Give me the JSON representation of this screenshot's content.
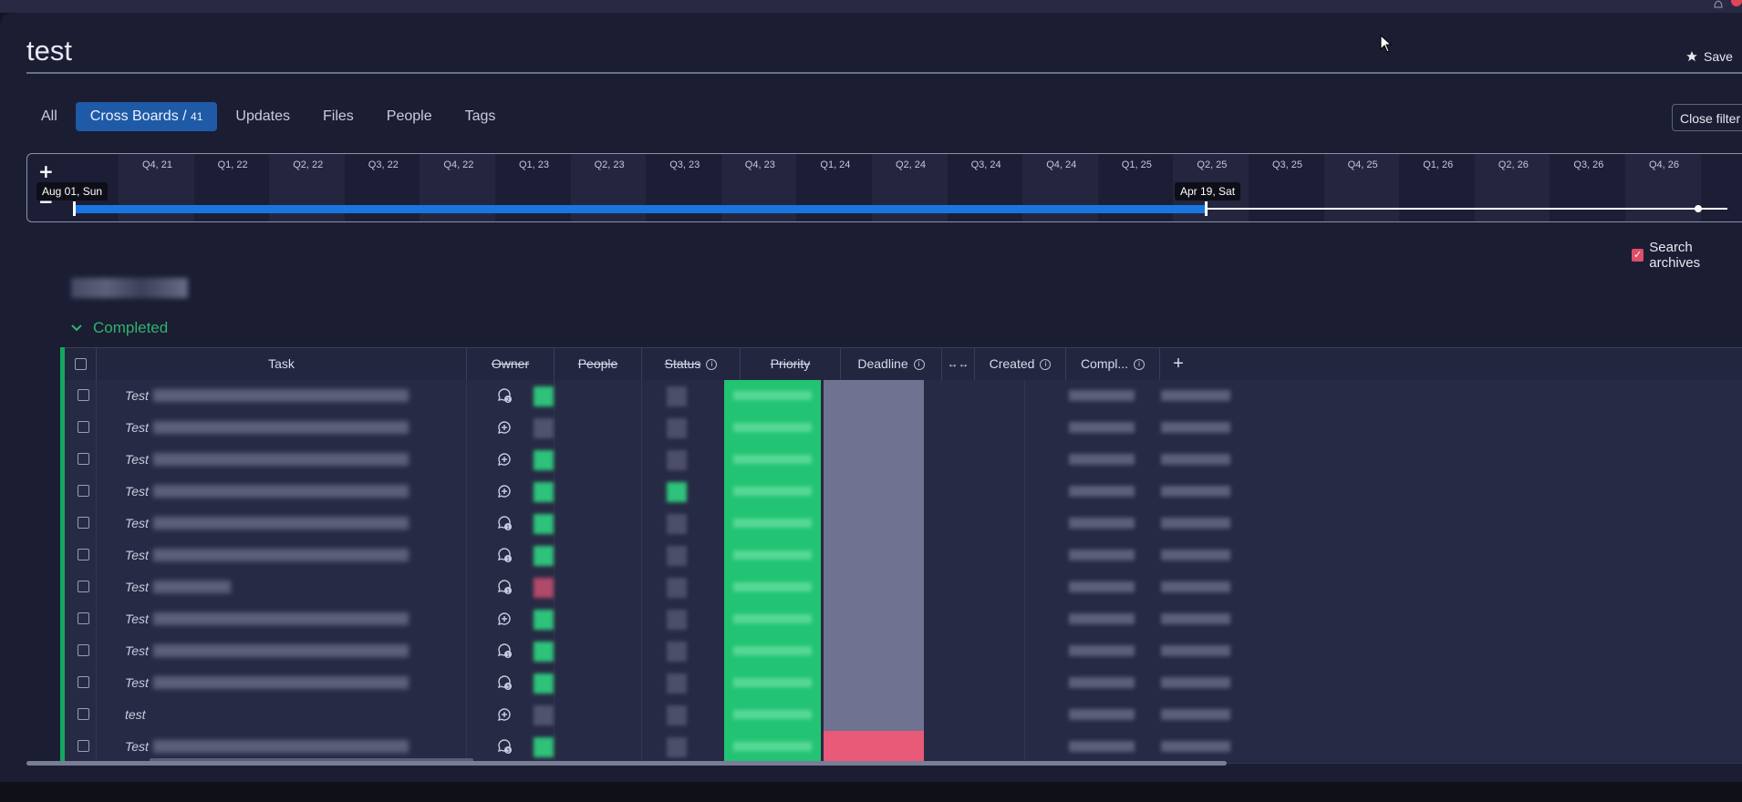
{
  "title": "test",
  "save_label": "Save",
  "tabs": [
    {
      "label": "All"
    },
    {
      "label": "Cross Boards / ",
      "count": "41",
      "active": true
    },
    {
      "label": "Updates"
    },
    {
      "label": "Files"
    },
    {
      "label": "People"
    },
    {
      "label": "Tags"
    }
  ],
  "close_filter_label": "Close filter",
  "timeline": {
    "quarters": [
      "Q4, 21",
      "Q1, 22",
      "Q2, 22",
      "Q3, 22",
      "Q4, 22",
      "Q1, 23",
      "Q2, 23",
      "Q3, 23",
      "Q4, 23",
      "Q1, 24",
      "Q2, 24",
      "Q3, 24",
      "Q4, 24",
      "Q1, 25",
      "Q2, 25",
      "Q3, 25",
      "Q4, 25",
      "Q1, 26",
      "Q2, 26",
      "Q3, 26",
      "Q4, 26"
    ],
    "start_label": "Aug 01, Sun",
    "end_label": "Apr 19, Sat",
    "zoom_in": "+",
    "zoom_out": "−"
  },
  "search_archives_label": "Search archives",
  "group": {
    "name": "Completed",
    "color": "#13a85e"
  },
  "columns": [
    "Task",
    "Owner",
    "People",
    "Status",
    "Priority",
    "Deadline",
    "Created",
    "Compl..."
  ],
  "rows": [
    {
      "task": "Test",
      "update": "badge",
      "badge": "2",
      "owner": "green",
      "people": "gray",
      "priority": "gray"
    },
    {
      "task": "Test",
      "update": "add",
      "owner": "gray",
      "people": "gray",
      "priority": "gray"
    },
    {
      "task": "Test",
      "update": "add",
      "owner": "green",
      "people": "gray",
      "priority": "gray"
    },
    {
      "task": "Test",
      "update": "add",
      "owner": "green",
      "people": "green",
      "priority": "gray"
    },
    {
      "task": "Test",
      "update": "badge",
      "badge": "1",
      "owner": "green",
      "people": "gray",
      "priority": "gray"
    },
    {
      "task": "Test",
      "update": "badge",
      "badge": "1",
      "owner": "green",
      "people": "gray",
      "priority": "gray"
    },
    {
      "task": "Test",
      "update": "badge",
      "badge": "1",
      "owner": "red",
      "people": "gray",
      "priority": "gray"
    },
    {
      "task": "Test",
      "update": "add",
      "owner": "green",
      "people": "gray",
      "priority": "gray"
    },
    {
      "task": "Test",
      "update": "badge",
      "badge": "1",
      "owner": "green",
      "people": "gray",
      "priority": "gray"
    },
    {
      "task": "Test",
      "update": "badge",
      "badge": "3",
      "owner": "green",
      "people": "gray",
      "priority": "gray"
    },
    {
      "task": "test",
      "update": "add",
      "owner": "gray",
      "people": "gray",
      "priority": "gray"
    },
    {
      "task": "Test",
      "update": "badge",
      "badge": "3",
      "owner": "green",
      "people": "gray",
      "priority": "red"
    }
  ],
  "colors": {
    "accent": "#1f5aa6",
    "status_done": "#22c473",
    "priority_high": "#e85a78"
  }
}
